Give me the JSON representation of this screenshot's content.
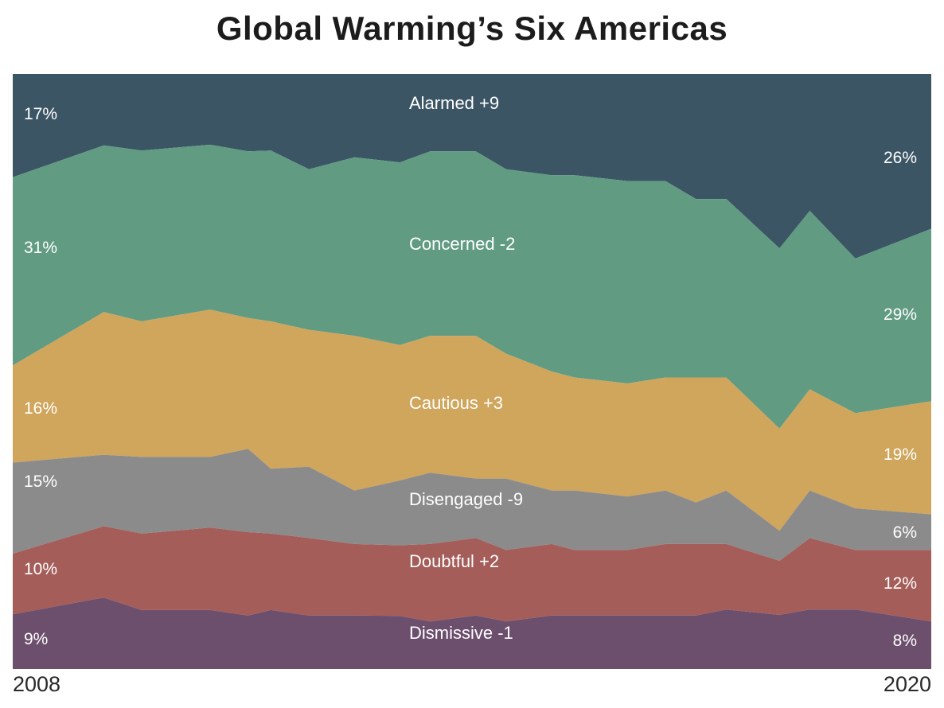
{
  "title": "Global Warming’s Six Americas",
  "x_axis": {
    "left": "2008",
    "right": "2020"
  },
  "chart_data": {
    "type": "area",
    "stacked": true,
    "normalized_to_100": true,
    "title": "Global Warming’s Six Americas",
    "xlabel": "",
    "ylabel": "",
    "x_years": [
      2008.8,
      2010.0,
      2010.5,
      2011.4,
      2011.9,
      2012.2,
      2012.7,
      2013.3,
      2013.9,
      2014.3,
      2014.9,
      2015.3,
      2015.9,
      2016.2,
      2016.9,
      2017.4,
      2017.8,
      2018.2,
      2018.9,
      2019.3,
      2019.9,
      2020.9
    ],
    "xlim": [
      2008.8,
      2020.9
    ],
    "ylim": [
      0,
      100
    ],
    "x_tick_labels": [
      "2008",
      "2020"
    ],
    "grid": false,
    "legend_position": "labels-inside-bands",
    "series": [
      {
        "name": "Alarmed",
        "label": "Alarmed +9",
        "start_pct": "17%",
        "end_pct": "26%",
        "color": "#3b5564",
        "values": [
          17,
          12,
          13,
          12,
          13,
          13,
          16,
          14,
          15,
          13,
          13,
          16,
          17,
          17,
          18,
          18,
          21,
          21,
          29,
          23,
          31,
          26
        ]
      },
      {
        "name": "Concerned",
        "label": "Concerned -2",
        "start_pct": "31%",
        "end_pct": "29%",
        "color": "#609b82",
        "values": [
          31,
          28,
          29,
          28,
          28,
          29,
          27,
          30,
          31,
          31,
          31,
          31,
          33,
          34,
          34,
          33,
          30,
          30,
          30,
          30,
          26,
          29
        ]
      },
      {
        "name": "Cautious",
        "label": "Cautious +3",
        "start_pct": "16%",
        "end_pct": "19%",
        "color": "#d0a55c",
        "values": [
          16,
          24,
          23,
          25,
          22,
          25,
          23,
          26,
          23,
          23,
          24,
          21,
          20,
          19,
          19,
          19,
          21,
          19,
          17,
          17,
          16,
          19
        ]
      },
      {
        "name": "Disengaged",
        "label": "Disengaged -9",
        "start_pct": "15%",
        "end_pct": "6%",
        "color": "#8b8b8b",
        "values": [
          15,
          12,
          13,
          12,
          14,
          11,
          12,
          9,
          11,
          12,
          10,
          12,
          9,
          10,
          9,
          9,
          7,
          9,
          5,
          8,
          7,
          6
        ]
      },
      {
        "name": "Doubtful",
        "label": "Doubtful +2",
        "start_pct": "10%",
        "end_pct": "12%",
        "color": "#a45d59",
        "values": [
          10,
          12,
          13,
          14,
          14,
          13,
          13,
          12,
          12,
          13,
          13,
          12,
          12,
          11,
          11,
          12,
          12,
          11,
          9,
          12,
          10,
          12
        ]
      },
      {
        "name": "Dismissive",
        "label": "Dismissive -1",
        "start_pct": "9%",
        "end_pct": "8%",
        "color": "#6c4e6d",
        "values": [
          9,
          12,
          10,
          10,
          9,
          10,
          9,
          9,
          9,
          8,
          9,
          8,
          9,
          9,
          9,
          9,
          9,
          10,
          9,
          10,
          10,
          8
        ]
      }
    ]
  }
}
